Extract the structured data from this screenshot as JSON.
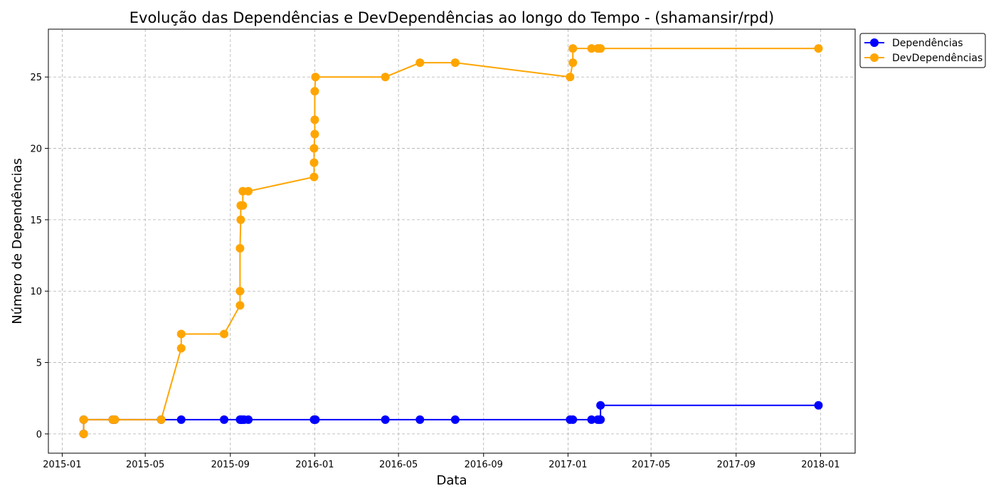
{
  "chart_data": {
    "type": "line",
    "title": "Evolução das Dependências e DevDependências ao longo do Tempo - (shamansir/rpd)",
    "xlabel": "Data",
    "ylabel": "Número de Dependências",
    "x_type": "date",
    "xlim": [
      "2014-12-12",
      "2018-02-20"
    ],
    "ylim": [
      -1.35,
      28.35
    ],
    "grid": true,
    "legend_position": "top-right, outside plot",
    "x_ticks": [
      "2015-01-01",
      "2015-05-01",
      "2015-09-01",
      "2016-01-01",
      "2016-05-01",
      "2016-09-01",
      "2017-01-01",
      "2017-05-01",
      "2017-09-01",
      "2018-01-01"
    ],
    "x_tick_labels": [
      "2015-01",
      "2015-05",
      "2015-09",
      "2016-01",
      "2016-05",
      "2016-09",
      "2017-01",
      "2017-05",
      "2017-09",
      "2018-01"
    ],
    "y_ticks": [
      0,
      5,
      10,
      15,
      20,
      25
    ],
    "y_tick_labels": [
      "0",
      "5",
      "10",
      "15",
      "20",
      "25"
    ],
    "series": [
      {
        "name": "Dependências",
        "color": "#0000ff",
        "marker": "circle",
        "points": [
          {
            "x": "2015-02-01",
            "y": 0
          },
          {
            "x": "2015-02-01",
            "y": 1
          },
          {
            "x": "2015-03-15",
            "y": 1
          },
          {
            "x": "2015-03-18",
            "y": 1
          },
          {
            "x": "2015-05-24",
            "y": 1
          },
          {
            "x": "2015-06-22",
            "y": 1
          },
          {
            "x": "2015-08-23",
            "y": 1
          },
          {
            "x": "2015-09-15",
            "y": 1
          },
          {
            "x": "2015-09-16",
            "y": 1
          },
          {
            "x": "2015-09-17",
            "y": 1
          },
          {
            "x": "2015-09-19",
            "y": 1
          },
          {
            "x": "2015-09-21",
            "y": 1
          },
          {
            "x": "2015-09-27",
            "y": 1
          },
          {
            "x": "2015-12-31",
            "y": 1
          },
          {
            "x": "2016-01-01",
            "y": 1
          },
          {
            "x": "2016-01-02",
            "y": 1
          },
          {
            "x": "2016-04-12",
            "y": 1
          },
          {
            "x": "2016-06-01",
            "y": 1
          },
          {
            "x": "2016-07-22",
            "y": 1
          },
          {
            "x": "2017-01-04",
            "y": 1
          },
          {
            "x": "2017-01-08",
            "y": 1
          },
          {
            "x": "2017-02-04",
            "y": 1
          },
          {
            "x": "2017-02-13",
            "y": 1
          },
          {
            "x": "2017-02-15",
            "y": 1
          },
          {
            "x": "2017-02-17",
            "y": 1
          },
          {
            "x": "2017-02-17",
            "y": 2
          },
          {
            "x": "2017-12-29",
            "y": 2
          }
        ]
      },
      {
        "name": "DevDependências",
        "color": "#ffa500",
        "marker": "circle",
        "points": [
          {
            "x": "2015-02-01",
            "y": 0
          },
          {
            "x": "2015-02-01",
            "y": 1
          },
          {
            "x": "2015-03-15",
            "y": 1
          },
          {
            "x": "2015-03-18",
            "y": 1
          },
          {
            "x": "2015-05-24",
            "y": 1
          },
          {
            "x": "2015-06-22",
            "y": 6
          },
          {
            "x": "2015-06-22",
            "y": 7
          },
          {
            "x": "2015-08-23",
            "y": 7
          },
          {
            "x": "2015-09-15",
            "y": 9
          },
          {
            "x": "2015-09-15",
            "y": 10
          },
          {
            "x": "2015-09-15",
            "y": 13
          },
          {
            "x": "2015-09-16",
            "y": 15
          },
          {
            "x": "2015-09-16",
            "y": 16
          },
          {
            "x": "2015-09-19",
            "y": 16
          },
          {
            "x": "2015-09-19",
            "y": 17
          },
          {
            "x": "2015-09-27",
            "y": 17
          },
          {
            "x": "2015-12-31",
            "y": 18
          },
          {
            "x": "2015-12-31",
            "y": 19
          },
          {
            "x": "2015-12-31",
            "y": 20
          },
          {
            "x": "2016-01-01",
            "y": 21
          },
          {
            "x": "2016-01-01",
            "y": 22
          },
          {
            "x": "2016-01-01",
            "y": 24
          },
          {
            "x": "2016-01-02",
            "y": 25
          },
          {
            "x": "2016-04-12",
            "y": 25
          },
          {
            "x": "2016-06-01",
            "y": 26
          },
          {
            "x": "2016-07-22",
            "y": 26
          },
          {
            "x": "2017-01-04",
            "y": 25
          },
          {
            "x": "2017-01-08",
            "y": 26
          },
          {
            "x": "2017-01-08",
            "y": 27
          },
          {
            "x": "2017-02-04",
            "y": 27
          },
          {
            "x": "2017-02-13",
            "y": 27
          },
          {
            "x": "2017-02-15",
            "y": 27
          },
          {
            "x": "2017-02-17",
            "y": 27
          },
          {
            "x": "2017-12-29",
            "y": 27
          }
        ]
      }
    ]
  }
}
